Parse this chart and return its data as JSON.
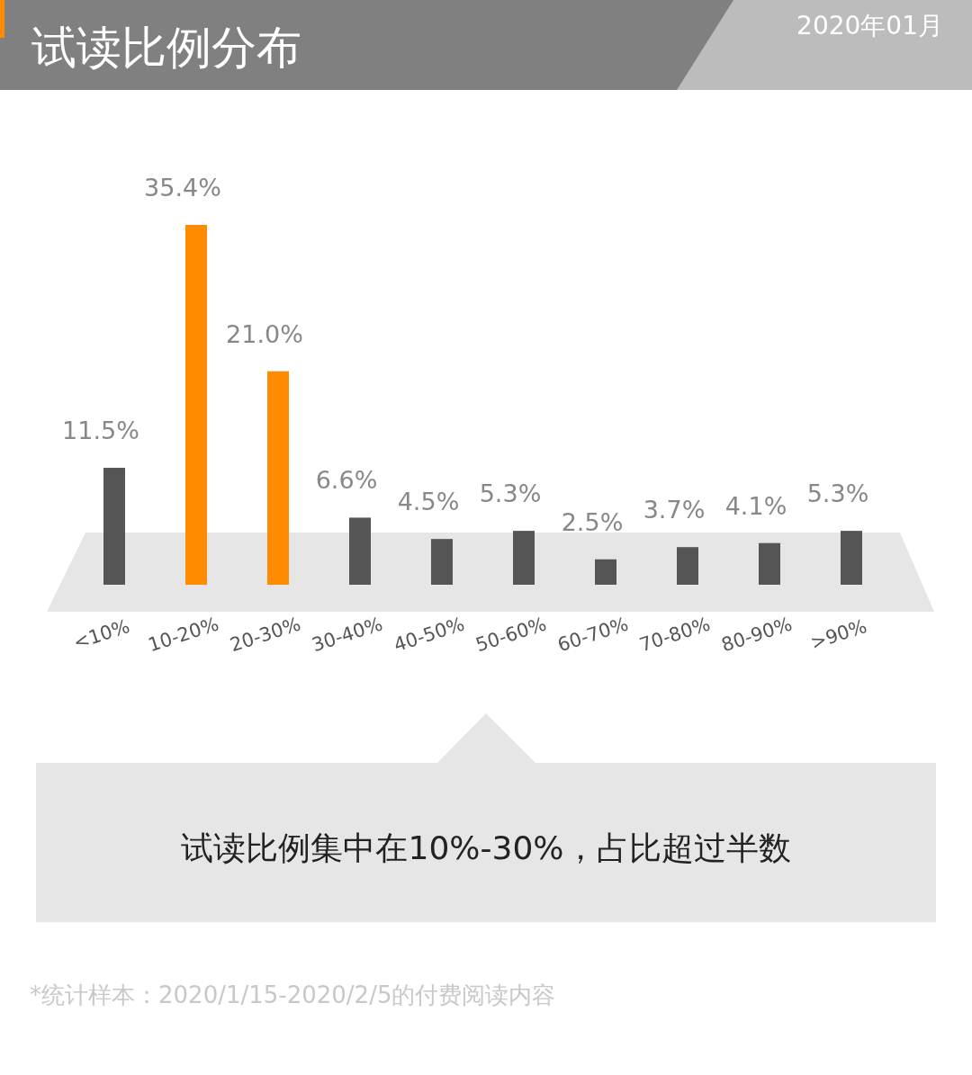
{
  "chart_data": {
    "type": "bar",
    "title": "试读比例分布",
    "subtitle": "2020年01月",
    "categories": [
      "<10%",
      "10-20%",
      "20-30%",
      "30-40%",
      "40-50%",
      "50-60%",
      "60-70%",
      "70-80%",
      "80-90%",
      ">90%"
    ],
    "values": [
      11.5,
      35.4,
      21.0,
      6.6,
      4.5,
      5.3,
      2.5,
      3.7,
      4.1,
      5.3
    ],
    "value_labels": [
      "11.5%",
      "35.4%",
      "21.0%",
      "6.6%",
      "4.5%",
      "5.3%",
      "2.5%",
      "3.7%",
      "4.1%",
      "5.3%"
    ],
    "colors": [
      "#555555",
      "#ff8c00",
      "#ff8c00",
      "#555555",
      "#555555",
      "#555555",
      "#555555",
      "#555555",
      "#555555",
      "#555555"
    ],
    "annotations": [
      "试读比例集中在10%-30%，占比超过半数",
      "*统计样本：2020/1/15-2020/2/5的付费阅读内容"
    ]
  }
}
